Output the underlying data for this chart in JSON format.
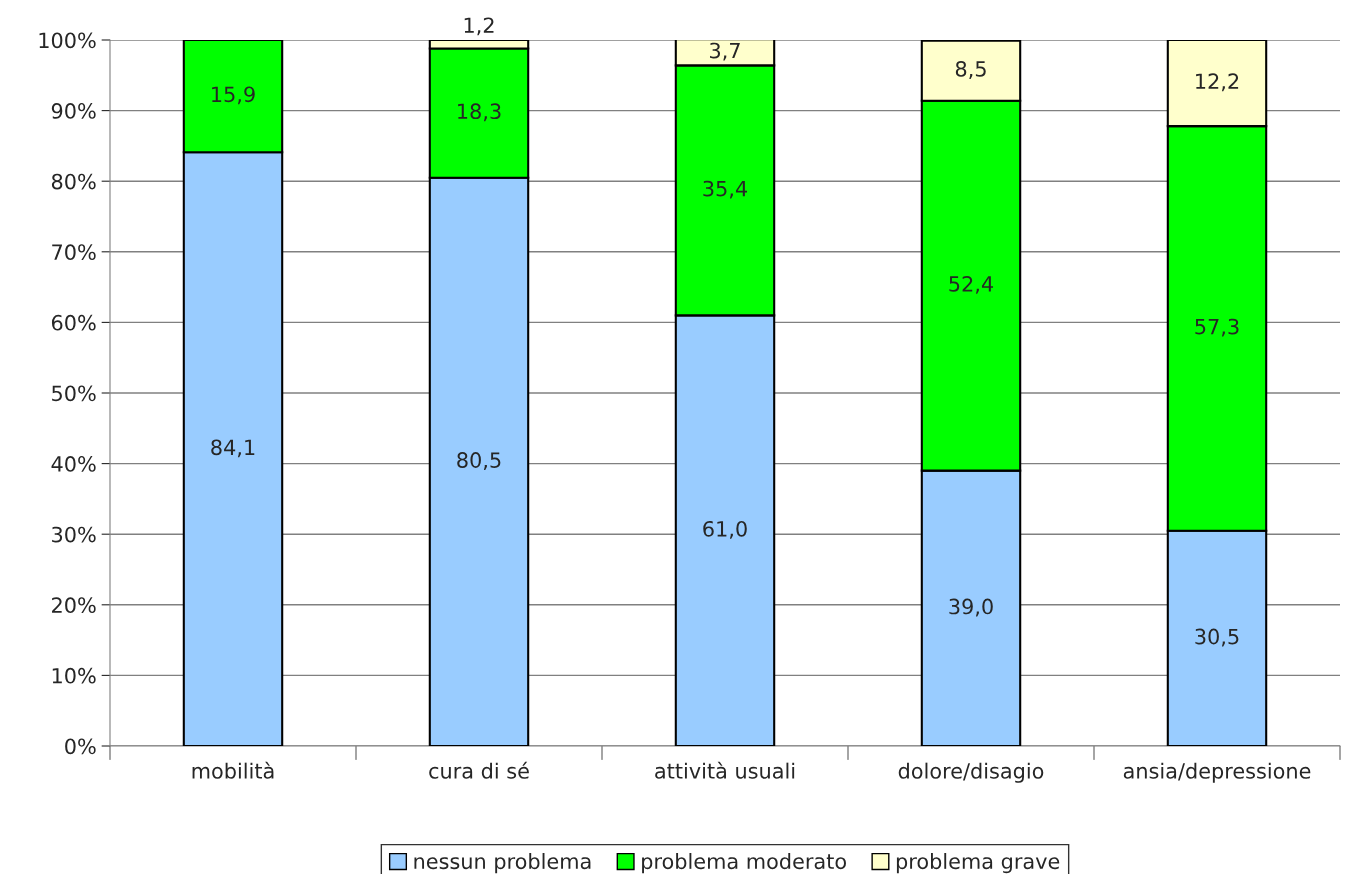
{
  "chart_data": {
    "type": "bar",
    "stacked": true,
    "categories": [
      "mobilità",
      "cura di sé",
      "attività usuali",
      "dolore/disagio",
      "ansia/depressione"
    ],
    "series": [
      {
        "name": "nessun problema",
        "color": "#99ccff",
        "values": [
          84.1,
          80.5,
          61.0,
          39.0,
          30.5
        ],
        "value_labels": [
          "84,1",
          "80,5",
          "61,0",
          "39,0",
          "30,5"
        ]
      },
      {
        "name": "problema moderato",
        "color": "#00ff00",
        "values": [
          15.9,
          18.3,
          35.4,
          52.4,
          57.3
        ],
        "value_labels": [
          "15,9",
          "18,3",
          "35,4",
          "52,4",
          "57,3"
        ]
      },
      {
        "name": "problema grave",
        "color": "#ffffcc",
        "values": [
          null,
          1.2,
          3.7,
          8.5,
          12.2
        ],
        "value_labels": [
          null,
          "1,2",
          "3,7",
          "8,5",
          "12,2"
        ]
      }
    ],
    "ylim": [
      0,
      100
    ],
    "yticks": [
      {
        "value": 0,
        "label": "0%"
      },
      {
        "value": 10,
        "label": "10%"
      },
      {
        "value": 20,
        "label": "20%"
      },
      {
        "value": 30,
        "label": "30%"
      },
      {
        "value": 40,
        "label": "40%"
      },
      {
        "value": 50,
        "label": "50%"
      },
      {
        "value": 60,
        "label": "60%"
      },
      {
        "value": 70,
        "label": "70%"
      },
      {
        "value": 80,
        "label": "80%"
      },
      {
        "value": 90,
        "label": "90%"
      },
      {
        "value": 100,
        "label": "100%"
      }
    ],
    "grid": "y",
    "legend": "bottom"
  }
}
